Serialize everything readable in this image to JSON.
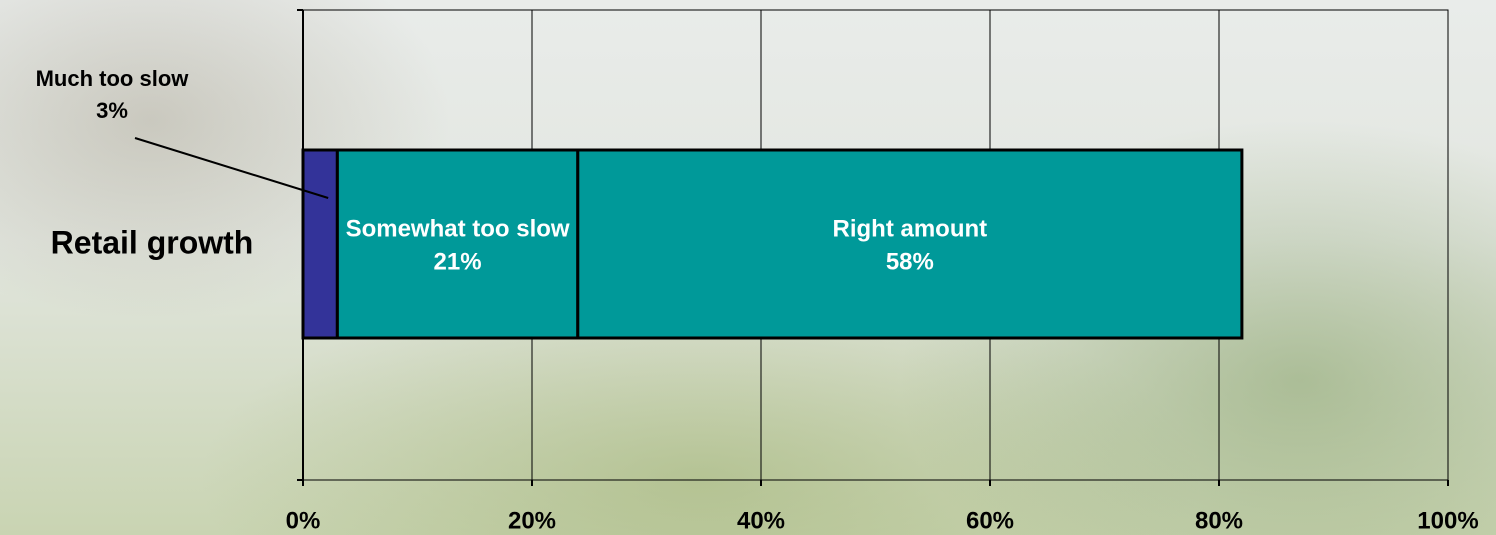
{
  "chart_data": {
    "type": "stacked-bar-horizontal",
    "categories": [
      "Retail growth"
    ],
    "series": [
      {
        "name": "Much too slow",
        "color": "#333399",
        "values": [
          3
        ],
        "value_labels": [
          "3%"
        ]
      },
      {
        "name": "Somewhat too slow",
        "color": "#009999",
        "values": [
          21
        ],
        "value_labels": [
          "21%"
        ]
      },
      {
        "name": "Right amount",
        "color": "#009999",
        "values": [
          58
        ],
        "value_labels": [
          "58%"
        ]
      }
    ],
    "xlim": [
      0,
      100
    ],
    "xticks": [
      {
        "value": 0,
        "label": "0%"
      },
      {
        "value": 20,
        "label": "20%"
      },
      {
        "value": 40,
        "label": "40%"
      },
      {
        "value": 60,
        "label": "60%"
      },
      {
        "value": 80,
        "label": "80%"
      },
      {
        "value": 100,
        "label": "100%"
      }
    ],
    "grid": true
  }
}
